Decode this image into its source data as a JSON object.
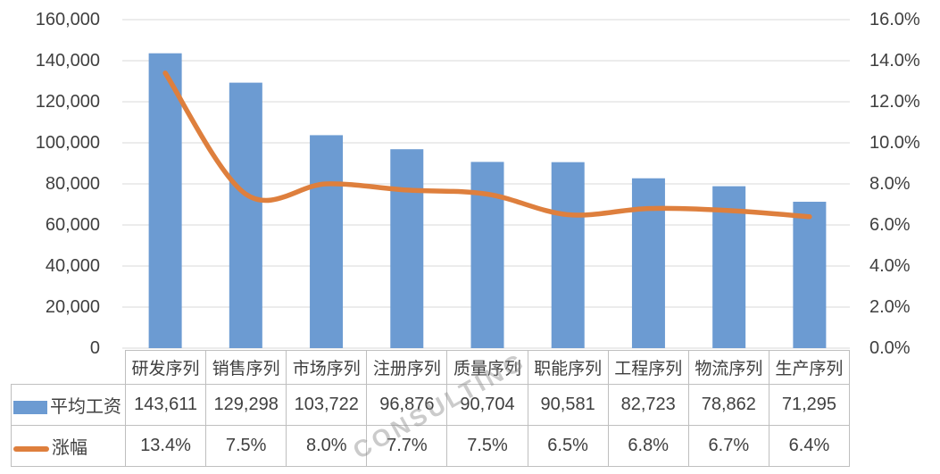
{
  "chart_data": {
    "type": "bar",
    "subtype": "combo-bar-line",
    "title": "",
    "categories": [
      "研发序列",
      "销售序列",
      "市场序列",
      "注册序列",
      "质量序列",
      "职能序列",
      "工程序列",
      "物流序列",
      "生产序列"
    ],
    "series": [
      {
        "name": "平均工资",
        "type": "bar",
        "axis": "left",
        "color": "#6c9bd2",
        "values": [
          143611,
          129298,
          103722,
          96876,
          90704,
          90581,
          82723,
          78862,
          71295
        ]
      },
      {
        "name": "涨幅",
        "type": "line",
        "axis": "right",
        "color": "#de7f3d",
        "values": [
          13.4,
          7.5,
          8.0,
          7.7,
          7.5,
          6.5,
          6.8,
          6.7,
          6.4
        ]
      }
    ],
    "left_axis": {
      "min": 0,
      "max": 160000,
      "step": 20000,
      "tick_labels": [
        "160,000",
        "140,000",
        "120,000",
        "100,000",
        "80,000",
        "60,000",
        "40,000",
        "20,000",
        "0"
      ]
    },
    "right_axis": {
      "min": 0,
      "max": 16,
      "step": 2,
      "tick_labels": [
        "16.0%",
        "14.0%",
        "12.0%",
        "10.0%",
        "8.0%",
        "6.0%",
        "4.0%",
        "2.0%",
        "0.0%"
      ]
    },
    "grid": true,
    "legend_position": "table-row-headers"
  },
  "table": {
    "rows": [
      {
        "label": "平均工资",
        "marker": "bar-swatch",
        "values": [
          "143,611",
          "129,298",
          "103,722",
          "96,876",
          "90,704",
          "90,581",
          "82,723",
          "78,862",
          "71,295"
        ]
      },
      {
        "label": "涨幅",
        "marker": "line-swatch",
        "values": [
          "13.4%",
          "7.5%",
          "8.0%",
          "7.7%",
          "7.5%",
          "6.5%",
          "6.8%",
          "6.7%",
          "6.4%"
        ]
      }
    ]
  },
  "watermark": {
    "text": "CONSULTING"
  },
  "colors": {
    "bar": "#6c9bd2",
    "line": "#de7f3d",
    "grid": "#d9d9d9",
    "table_border": "#bfbfbf",
    "text": "#3f3f3f"
  }
}
